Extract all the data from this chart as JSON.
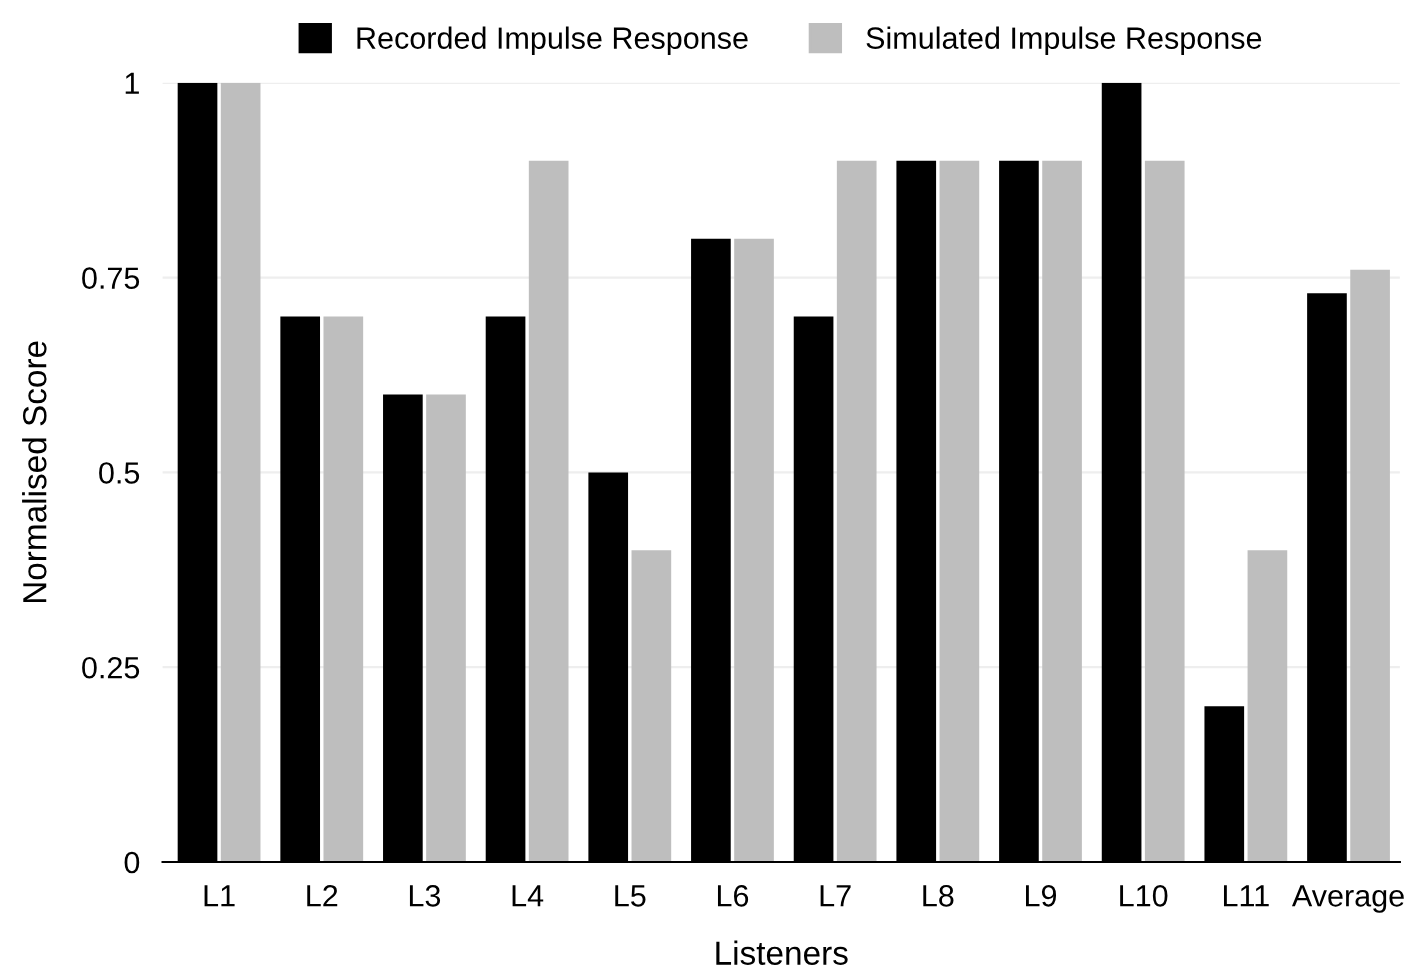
{
  "chart_data": {
    "type": "bar",
    "xlabel": "Listeners",
    "ylabel": "Normalised Score",
    "categories": [
      "L1",
      "L2",
      "L3",
      "L4",
      "L5",
      "L6",
      "L7",
      "L8",
      "L9",
      "L10",
      "L11",
      "Average"
    ],
    "series": [
      {
        "name": "Recorded Impulse Response",
        "color": "#000000",
        "values": [
          1,
          0.7,
          0.6,
          0.7,
          0.5,
          0.8,
          0.7,
          0.9,
          0.9,
          1,
          0.2,
          0.73
        ]
      },
      {
        "name": "Simulated Impulse Response",
        "color": "#bebebe",
        "values": [
          1,
          0.7,
          0.6,
          0.9,
          0.4,
          0.8,
          0.9,
          0.9,
          0.9,
          0.9,
          0.4,
          0.76
        ]
      }
    ],
    "ylim": [
      0,
      1
    ],
    "yticks": [
      0,
      0.25,
      0.5,
      0.75,
      1
    ],
    "grid": "y",
    "legend": "top"
  }
}
